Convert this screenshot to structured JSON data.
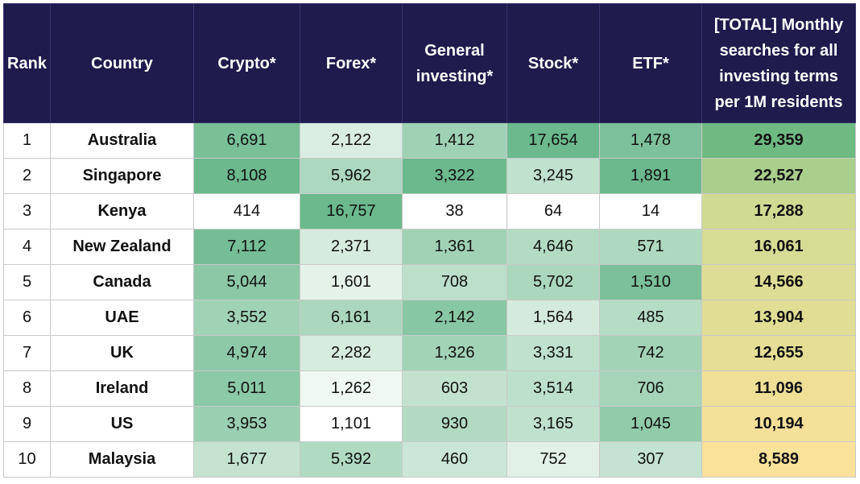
{
  "chart_data": {
    "type": "table",
    "columns": [
      "Rank",
      "Country",
      "Crypto*",
      "Forex*",
      "General investing*",
      "Stock*",
      "ETF*",
      "[TOTAL] Monthly searches for all investing terms per 1M residents"
    ],
    "rows": [
      {
        "rank": "1",
        "country": "Australia",
        "crypto": "6,691",
        "forex": "2,122",
        "general": "1,412",
        "stock": "17,654",
        "etf": "1,478",
        "total": "29,359"
      },
      {
        "rank": "2",
        "country": "Singapore",
        "crypto": "8,108",
        "forex": "5,962",
        "general": "3,322",
        "stock": "3,245",
        "etf": "1,891",
        "total": "22,527"
      },
      {
        "rank": "3",
        "country": "Kenya",
        "crypto": "414",
        "forex": "16,757",
        "general": "38",
        "stock": "64",
        "etf": "14",
        "total": "17,288"
      },
      {
        "rank": "4",
        "country": "New Zealand",
        "crypto": "7,112",
        "forex": "2,371",
        "general": "1,361",
        "stock": "4,646",
        "etf": "571",
        "total": "16,061"
      },
      {
        "rank": "5",
        "country": "Canada",
        "crypto": "5,044",
        "forex": "1,601",
        "general": "708",
        "stock": "5,702",
        "etf": "1,510",
        "total": "14,566"
      },
      {
        "rank": "6",
        "country": "UAE",
        "crypto": "3,552",
        "forex": "6,161",
        "general": "2,142",
        "stock": "1,564",
        "etf": "485",
        "total": "13,904"
      },
      {
        "rank": "7",
        "country": "UK",
        "crypto": "4,974",
        "forex": "2,282",
        "general": "1,326",
        "stock": "3,331",
        "etf": "742",
        "total": "12,655"
      },
      {
        "rank": "8",
        "country": "Ireland",
        "crypto": "5,011",
        "forex": "1,262",
        "general": "603",
        "stock": "3,514",
        "etf": "706",
        "total": "11,096"
      },
      {
        "rank": "9",
        "country": "US",
        "crypto": "3,953",
        "forex": "1,101",
        "general": "930",
        "stock": "3,165",
        "etf": "1,045",
        "total": "10,194"
      },
      {
        "rank": "10",
        "country": "Malaysia",
        "crypto": "1,677",
        "forex": "5,392",
        "general": "460",
        "stock": "752",
        "etf": "307",
        "total": "8,589"
      }
    ],
    "colors": {
      "header_bg": "#1f1b4d",
      "header_text": "#ffffff",
      "scale_low": "#ffffff",
      "scale_high": "#63b586",
      "total_high": "#6fba82",
      "total_mid": "#c9d991",
      "total_low": "#fbe29a"
    }
  }
}
